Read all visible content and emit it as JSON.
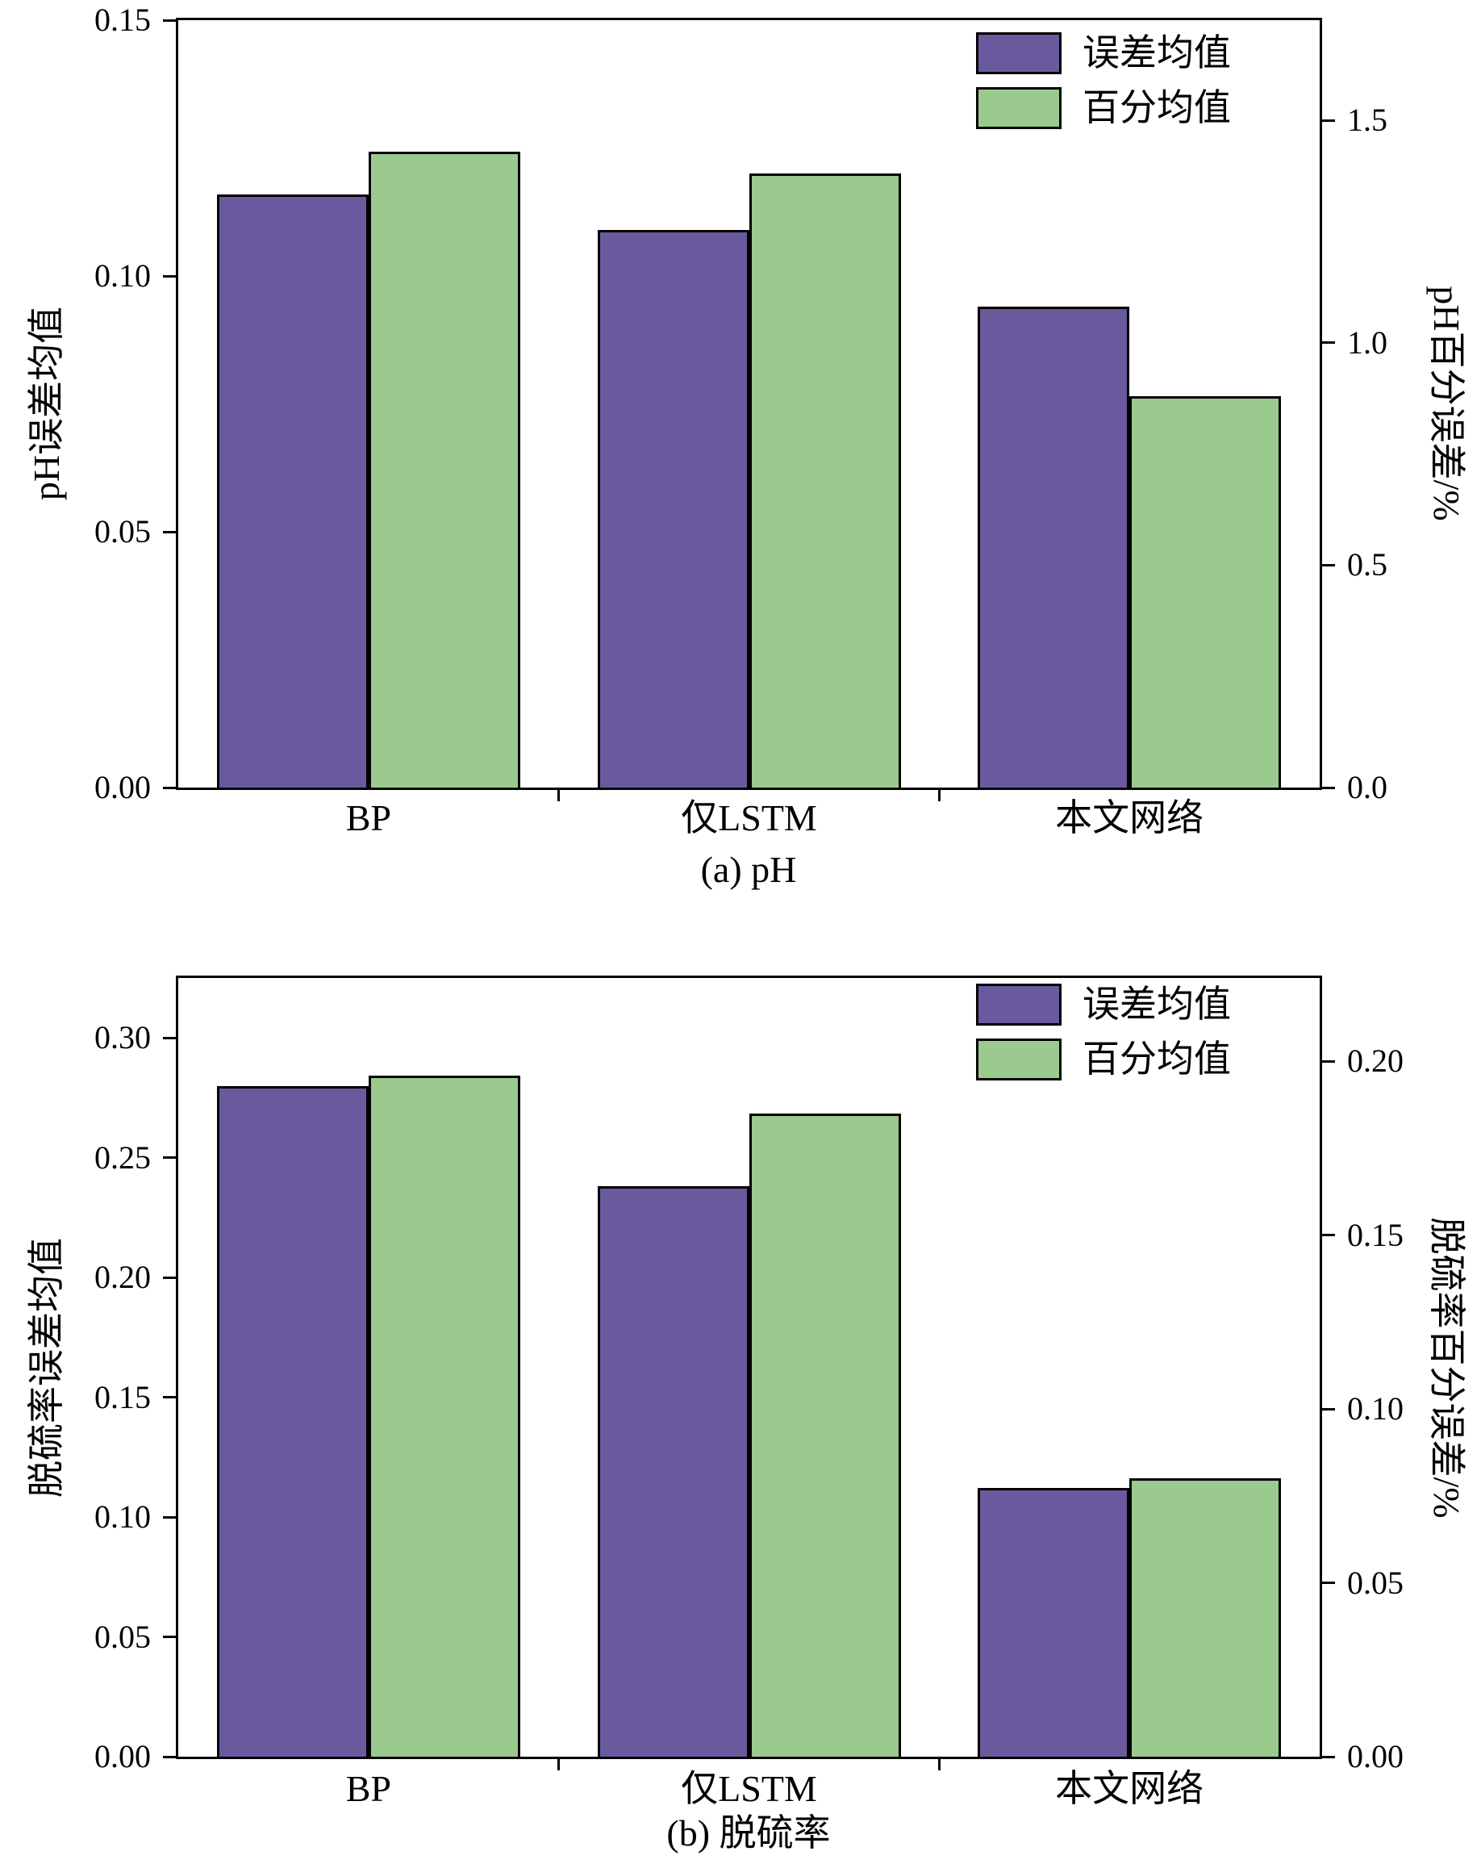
{
  "figure": {
    "background": "#ffffff",
    "axis_color": "#000000"
  },
  "colors": {
    "error_mean": "#6a5a9d",
    "percent_mean": "#9bca8e"
  },
  "legend": {
    "items": [
      {
        "label": "误差均值",
        "color": "#6a5a9d"
      },
      {
        "label": "百分均值",
        "color": "#9bca8e"
      }
    ]
  },
  "chart_data": [
    {
      "id": "ph",
      "type": "bar",
      "title_caption": "(a) pH",
      "categories": [
        "BP",
        "仅LSTM",
        "本文网络"
      ],
      "series": [
        {
          "name": "误差均值",
          "axis": "left",
          "color": "#6a5a9d",
          "values": [
            0.116,
            0.109,
            0.094
          ]
        },
        {
          "name": "百分均值",
          "axis": "right",
          "color": "#9bca8e",
          "values": [
            1.43,
            1.38,
            0.88
          ]
        }
      ],
      "left_axis": {
        "label": "pH误差均值",
        "min": 0,
        "max": 0.15,
        "ticks": [
          0.0,
          0.05,
          0.1,
          0.15
        ],
        "decimals": 2
      },
      "right_axis": {
        "label": "pH百分误差/%",
        "min": 0,
        "max": 1.725,
        "ticks": [
          0.0,
          0.5,
          1.0,
          1.5
        ],
        "decimals": 1
      },
      "legend_position": "top-right",
      "grid": false
    },
    {
      "id": "desulfurization-rate",
      "type": "bar",
      "title_caption": "(b) 脱硫率",
      "categories": [
        "BP",
        "仅LSTM",
        "本文网络"
      ],
      "series": [
        {
          "name": "误差均值",
          "axis": "left",
          "color": "#6a5a9d",
          "values": [
            0.28,
            0.238,
            0.112
          ]
        },
        {
          "name": "百分均值",
          "axis": "right",
          "color": "#9bca8e",
          "values": [
            0.196,
            0.185,
            0.08
          ]
        }
      ],
      "left_axis": {
        "label": "脱硫率误差均值",
        "min": 0,
        "max": 0.325,
        "ticks": [
          0.0,
          0.05,
          0.1,
          0.15,
          0.2,
          0.25,
          0.3
        ],
        "decimals": 2
      },
      "right_axis": {
        "label": "脱硫率百分误差/%",
        "min": 0,
        "max": 0.224,
        "ticks": [
          0.0,
          0.05,
          0.1,
          0.15,
          0.2
        ],
        "decimals": 2
      },
      "legend_position": "top-right",
      "grid": false
    }
  ]
}
